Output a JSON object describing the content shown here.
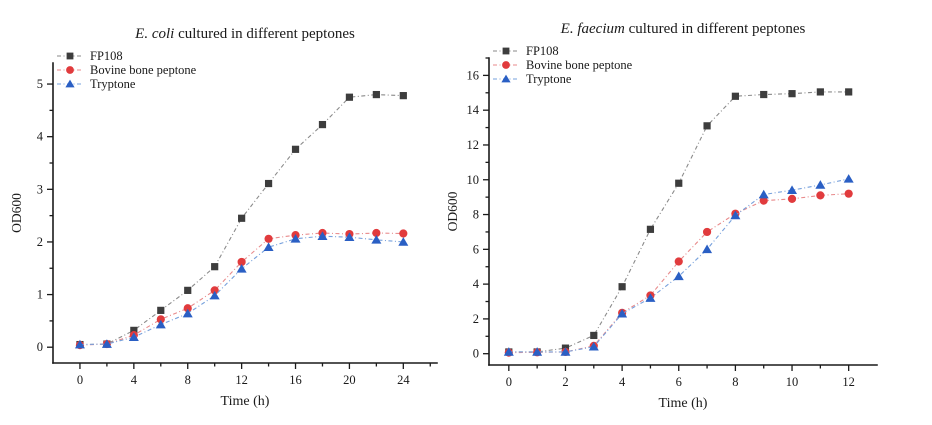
{
  "page": {
    "background": "#ffffff"
  },
  "chart_data": [
    {
      "type": "line",
      "title_italic": "E. coli",
      "title_rest": " cultured in different peptones",
      "xlabel": "Time (h)",
      "ylabel": "OD600",
      "grid": false,
      "legend_position": "top-left",
      "x": [
        0,
        2,
        4,
        6,
        8,
        10,
        12,
        14,
        16,
        18,
        20,
        22,
        24
      ],
      "xlim": [
        -2,
        26.5
      ],
      "ylim": [
        -0.3,
        5.4
      ],
      "x_major_ticks": [
        0,
        4,
        8,
        12,
        16,
        20,
        24
      ],
      "x_minor_ticks": [
        2,
        6,
        10,
        14,
        18,
        22,
        26
      ],
      "y_major_ticks": [
        0,
        1,
        2,
        3,
        4,
        5
      ],
      "y_minor_ticks": [
        0.5,
        1.5,
        2.5,
        3.5,
        4.5
      ],
      "series": [
        {
          "name": "FP108",
          "marker": "square",
          "marker_color": "#3d3d3d",
          "line_color": "#8a8a8a",
          "values": [
            0.05,
            0.06,
            0.32,
            0.7,
            1.08,
            1.53,
            2.45,
            3.11,
            3.76,
            4.23,
            4.75,
            4.8,
            4.78
          ]
        },
        {
          "name": "Bovine bone peptone",
          "marker": "circle",
          "marker_color": "#e13b3d",
          "line_color": "#e98splice",
          "values": [
            0.04,
            0.06,
            0.23,
            0.53,
            0.74,
            1.08,
            1.62,
            2.06,
            2.13,
            2.17,
            2.15,
            2.17,
            2.16
          ]
        },
        {
          "name": "Tryptone",
          "marker": "triangle",
          "marker_color": "#2a5fc4",
          "line_color": "#76a0dc",
          "values": [
            0.05,
            0.06,
            0.19,
            0.43,
            0.64,
            0.98,
            1.49,
            1.9,
            2.06,
            2.11,
            2.09,
            2.04,
            2.0
          ]
        }
      ]
    },
    {
      "type": "line",
      "title_italic": "E. faecium",
      "title_rest": " cultured in different peptones",
      "xlabel": "Time (h)",
      "ylabel": "OD600",
      "grid": false,
      "legend_position": "top-left",
      "x": [
        0,
        1,
        2,
        3,
        4,
        5,
        6,
        7,
        8,
        9,
        10,
        11,
        12
      ],
      "xlim": [
        -0.7,
        13
      ],
      "ylim": [
        -0.65,
        17
      ],
      "x_major_ticks": [
        0,
        2,
        4,
        6,
        8,
        10,
        12
      ],
      "x_minor_ticks": [
        1,
        3,
        5,
        7,
        9,
        11
      ],
      "y_major_ticks": [
        0,
        2,
        4,
        6,
        8,
        10,
        12,
        14,
        16
      ],
      "y_minor_ticks": [
        1,
        3,
        5,
        7,
        9,
        11,
        13,
        15,
        17
      ],
      "series": [
        {
          "name": "FP108",
          "marker": "square",
          "marker_color": "#3d3d3d",
          "line_color": "#8a8a8a",
          "values": [
            0.1,
            0.1,
            0.32,
            1.05,
            3.85,
            7.15,
            9.8,
            13.1,
            14.8,
            14.9,
            14.95,
            15.05,
            15.05
          ]
        },
        {
          "name": "Bovine bone peptone",
          "marker": "circle",
          "marker_color": "#e13b3d",
          "line_color": "#e88a8b",
          "values": [
            0.06,
            0.08,
            0.1,
            0.45,
            2.35,
            3.35,
            5.3,
            7.0,
            8.05,
            8.8,
            8.9,
            9.1,
            9.2
          ]
        },
        {
          "name": "Tryptone",
          "marker": "triangle",
          "marker_color": "#2a5fc4",
          "line_color": "#76a0dc",
          "values": [
            0.1,
            0.1,
            0.1,
            0.4,
            2.3,
            3.2,
            4.45,
            6.0,
            7.95,
            9.15,
            9.4,
            9.7,
            10.05
          ]
        }
      ]
    }
  ]
}
